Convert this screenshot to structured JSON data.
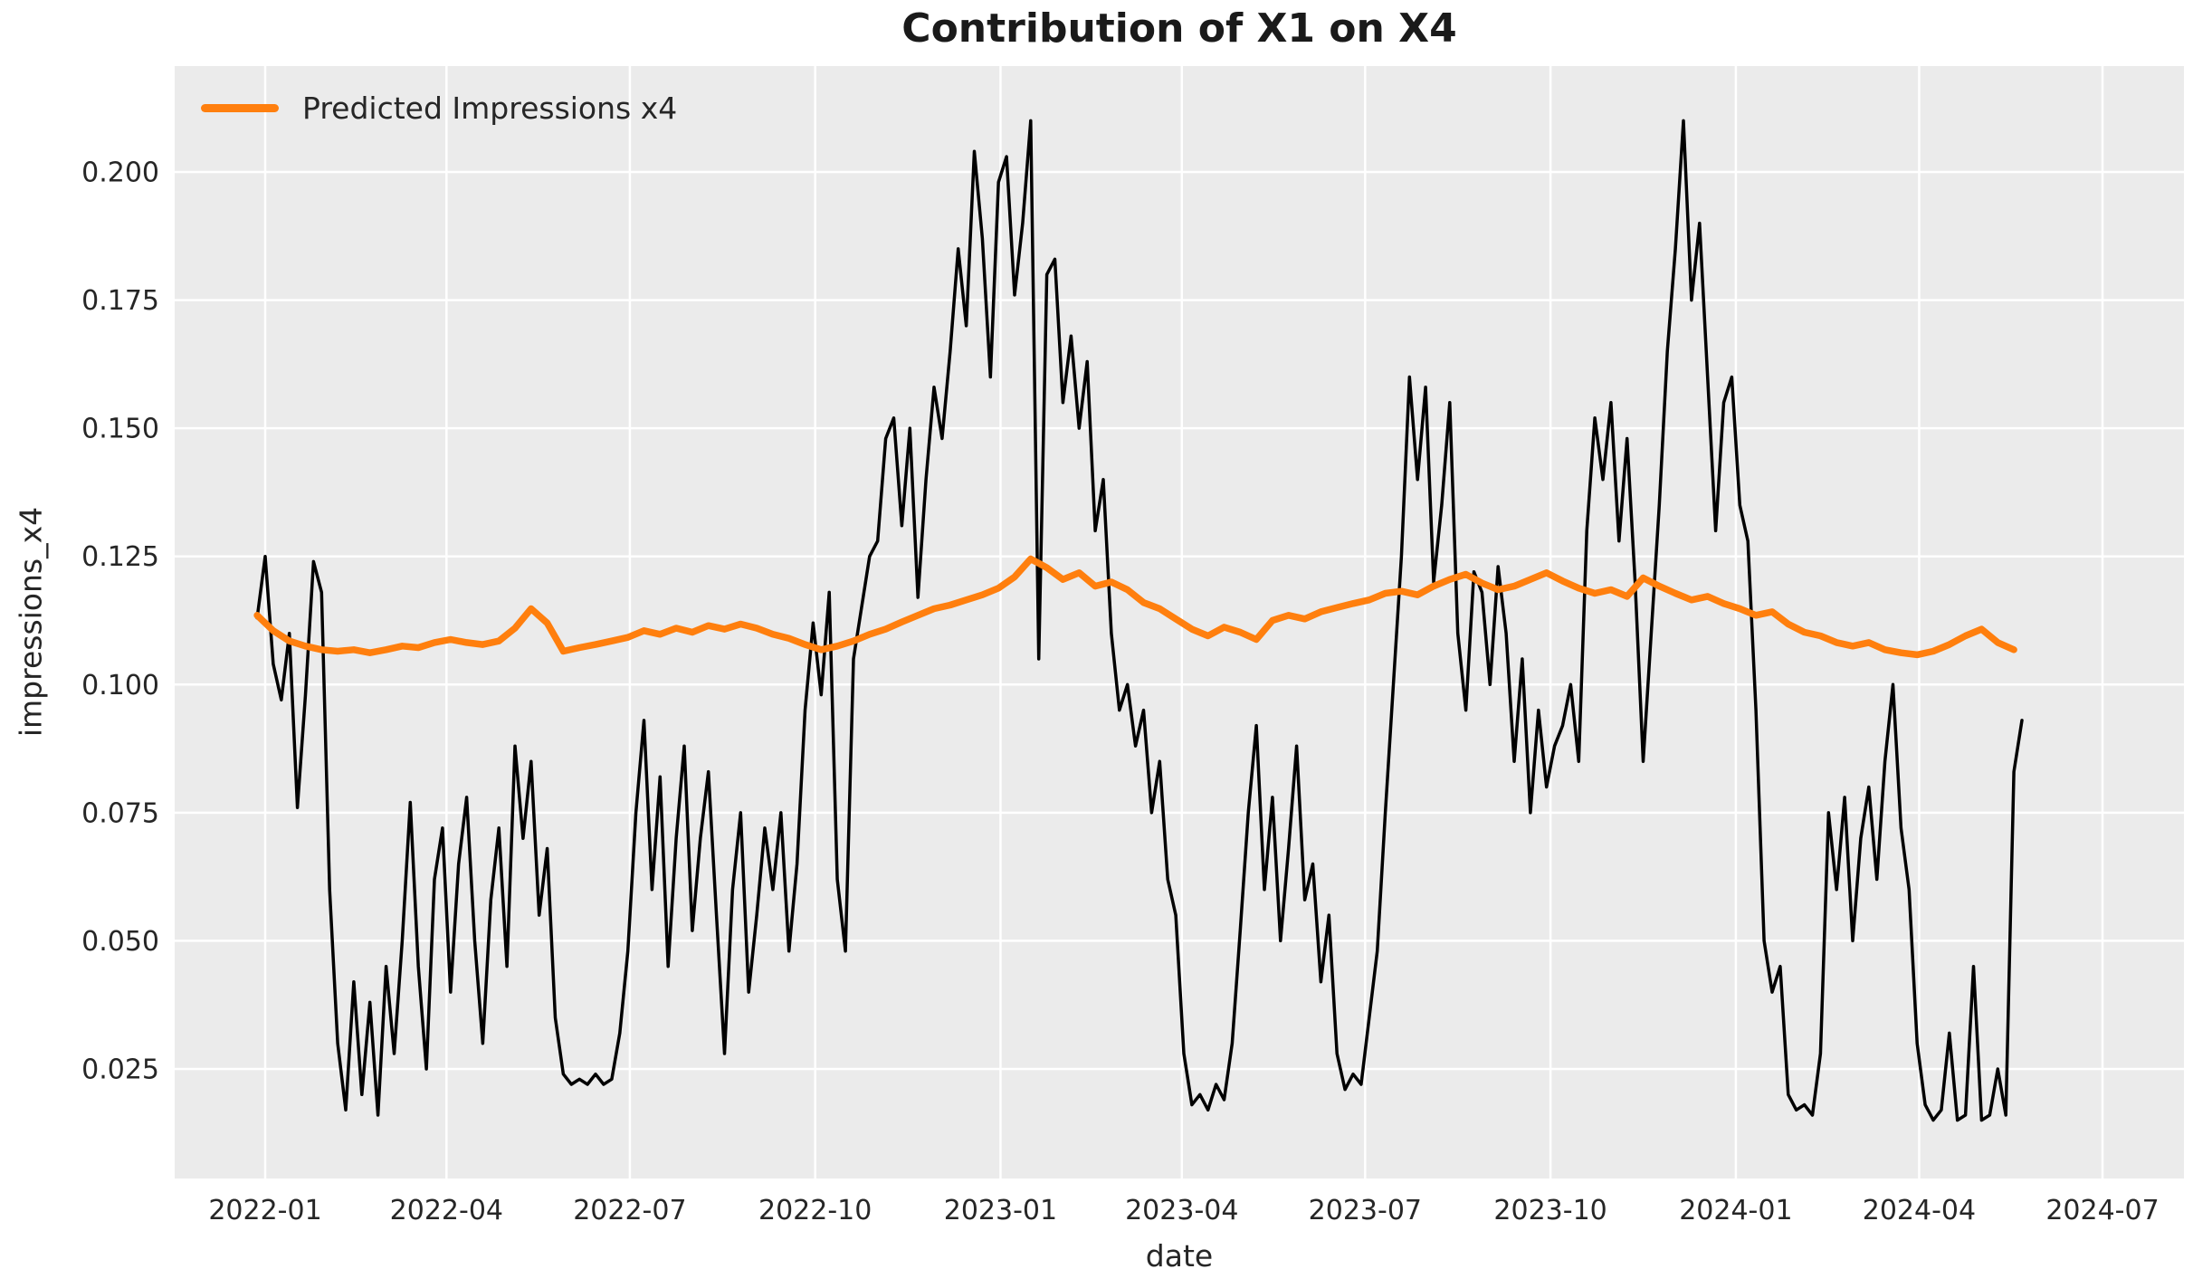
{
  "title": "Contribution of X1 on X4",
  "axes": {
    "xlabel": "date",
    "ylabel": "impressions_x4"
  },
  "legend": {
    "items": [
      {
        "label": "Predicted Impressions x4",
        "color": "#ff7f0e"
      }
    ]
  },
  "colors": {
    "figure_bg": "#ffffff",
    "plot_bg": "#ebebeb",
    "grid": "#ffffff",
    "tick_text": "#262626",
    "title_text": "#1a1a1a",
    "actual_line": "#000000",
    "predicted_line": "#ff7f0e"
  },
  "chart_data": {
    "type": "line",
    "title": "Contribution of X1 on X4",
    "xlabel": "date",
    "ylabel": "impressions_x4",
    "grid": true,
    "legend_position": "upper left",
    "epoch_date": "2021-12-28",
    "ylim": [
      0.0036,
      0.2207
    ],
    "xlim_days": [
      -41,
      956
    ],
    "y_ticks": [
      {
        "label": "0.025",
        "value": 0.025
      },
      {
        "label": "0.050",
        "value": 0.05
      },
      {
        "label": "0.075",
        "value": 0.075
      },
      {
        "label": "0.100",
        "value": 0.1
      },
      {
        "label": "0.125",
        "value": 0.125
      },
      {
        "label": "0.150",
        "value": 0.15
      },
      {
        "label": "0.175",
        "value": 0.175
      },
      {
        "label": "0.200",
        "value": 0.2
      }
    ],
    "x_ticks": [
      {
        "label": "2022-01",
        "day": 4
      },
      {
        "label": "2022-04",
        "day": 94
      },
      {
        "label": "2022-07",
        "day": 185
      },
      {
        "label": "2022-10",
        "day": 277
      },
      {
        "label": "2023-01",
        "day": 369
      },
      {
        "label": "2023-04",
        "day": 459
      },
      {
        "label": "2023-07",
        "day": 550
      },
      {
        "label": "2023-10",
        "day": 642
      },
      {
        "label": "2024-01",
        "day": 734
      },
      {
        "label": "2024-04",
        "day": 825
      },
      {
        "label": "2024-07",
        "day": 916
      }
    ],
    "series": [
      {
        "name": "impressions_x4",
        "legend_label": null,
        "color": "#000000",
        "linewidth": 3.5,
        "start_day": 0,
        "step_days": 4,
        "values": [
          0.113,
          0.125,
          0.104,
          0.097,
          0.11,
          0.076,
          0.098,
          0.124,
          0.118,
          0.06,
          0.03,
          0.017,
          0.042,
          0.02,
          0.038,
          0.016,
          0.045,
          0.028,
          0.05,
          0.077,
          0.045,
          0.025,
          0.062,
          0.072,
          0.04,
          0.065,
          0.078,
          0.05,
          0.03,
          0.058,
          0.072,
          0.045,
          0.088,
          0.07,
          0.085,
          0.055,
          0.068,
          0.035,
          0.024,
          0.022,
          0.023,
          0.022,
          0.024,
          0.022,
          0.023,
          0.032,
          0.048,
          0.075,
          0.093,
          0.06,
          0.082,
          0.045,
          0.07,
          0.088,
          0.052,
          0.07,
          0.083,
          0.055,
          0.028,
          0.06,
          0.075,
          0.04,
          0.055,
          0.072,
          0.06,
          0.075,
          0.048,
          0.065,
          0.095,
          0.112,
          0.098,
          0.118,
          0.062,
          0.048,
          0.105,
          0.115,
          0.125,
          0.128,
          0.148,
          0.152,
          0.131,
          0.15,
          0.117,
          0.14,
          0.158,
          0.148,
          0.165,
          0.185,
          0.17,
          0.204,
          0.187,
          0.16,
          0.198,
          0.203,
          0.176,
          0.19,
          0.21,
          0.105,
          0.18,
          0.183,
          0.155,
          0.168,
          0.15,
          0.163,
          0.13,
          0.14,
          0.11,
          0.095,
          0.1,
          0.088,
          0.095,
          0.075,
          0.085,
          0.062,
          0.055,
          0.028,
          0.018,
          0.02,
          0.017,
          0.022,
          0.019,
          0.03,
          0.052,
          0.075,
          0.092,
          0.06,
          0.078,
          0.05,
          0.068,
          0.088,
          0.058,
          0.065,
          0.042,
          0.055,
          0.028,
          0.021,
          0.024,
          0.022,
          0.035,
          0.048,
          0.075,
          0.1,
          0.125,
          0.16,
          0.14,
          0.158,
          0.12,
          0.135,
          0.155,
          0.11,
          0.095,
          0.122,
          0.118,
          0.1,
          0.123,
          0.11,
          0.085,
          0.105,
          0.075,
          0.095,
          0.08,
          0.088,
          0.092,
          0.1,
          0.085,
          0.13,
          0.152,
          0.14,
          0.155,
          0.128,
          0.148,
          0.12,
          0.085,
          0.11,
          0.135,
          0.165,
          0.185,
          0.21,
          0.175,
          0.19,
          0.16,
          0.13,
          0.155,
          0.16,
          0.135,
          0.128,
          0.095,
          0.05,
          0.04,
          0.045,
          0.02,
          0.017,
          0.018,
          0.016,
          0.028,
          0.075,
          0.06,
          0.078,
          0.05,
          0.07,
          0.08,
          0.062,
          0.085,
          0.1,
          0.072,
          0.06,
          0.03,
          0.018,
          0.015,
          0.017,
          0.032,
          0.015,
          0.016,
          0.045,
          0.015,
          0.016,
          0.025,
          0.016,
          0.083,
          0.093
        ]
      },
      {
        "name": "Predicted Impressions x4",
        "legend_label": "Predicted Impressions x4",
        "color": "#ff7f0e",
        "linewidth": 7.5,
        "start_day": 0,
        "step_days": 8,
        "values": [
          0.1135,
          0.1105,
          0.1085,
          0.1075,
          0.1068,
          0.1065,
          0.1068,
          0.1062,
          0.1068,
          0.1075,
          0.1072,
          0.1082,
          0.1088,
          0.1082,
          0.1078,
          0.1085,
          0.111,
          0.1148,
          0.112,
          0.1065,
          0.1072,
          0.1078,
          0.1085,
          0.1092,
          0.1105,
          0.1098,
          0.111,
          0.1102,
          0.1115,
          0.1108,
          0.1118,
          0.111,
          0.1098,
          0.109,
          0.1078,
          0.1068,
          0.1075,
          0.1085,
          0.1098,
          0.1108,
          0.1122,
          0.1135,
          0.1148,
          0.1155,
          0.1165,
          0.1175,
          0.1188,
          0.121,
          0.1245,
          0.1228,
          0.1205,
          0.1218,
          0.1192,
          0.12,
          0.1185,
          0.116,
          0.1148,
          0.1128,
          0.1108,
          0.1095,
          0.1112,
          0.1102,
          0.1088,
          0.1125,
          0.1135,
          0.1128,
          0.1142,
          0.115,
          0.1158,
          0.1165,
          0.1178,
          0.1182,
          0.1175,
          0.1192,
          0.1205,
          0.1215,
          0.1198,
          0.1185,
          0.1192,
          0.1205,
          0.1218,
          0.1202,
          0.1188,
          0.1178,
          0.1185,
          0.1172,
          0.1208,
          0.1192,
          0.1178,
          0.1165,
          0.1172,
          0.1158,
          0.1148,
          0.1135,
          0.1142,
          0.1118,
          0.1102,
          0.1095,
          0.1082,
          0.1075,
          0.1082,
          0.1068,
          0.1062,
          0.1058,
          0.1065,
          0.1078,
          0.1095,
          0.1108,
          0.1082,
          0.1068
        ]
      }
    ]
  }
}
